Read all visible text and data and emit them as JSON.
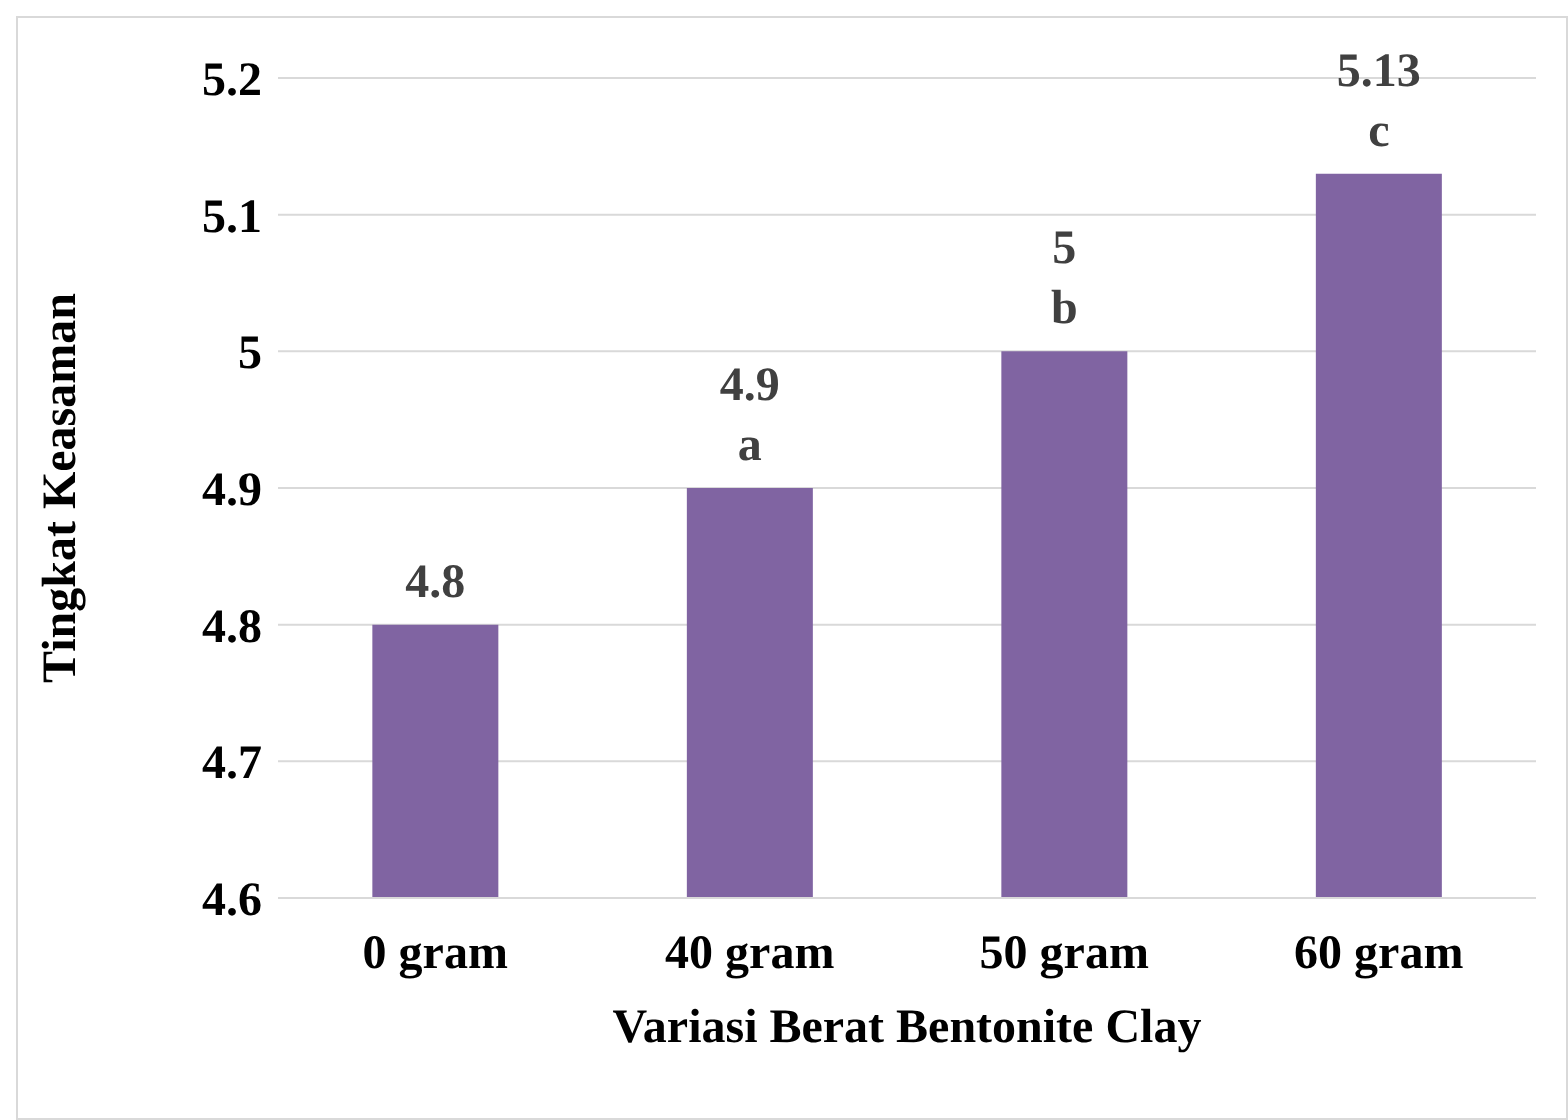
{
  "chart_data": {
    "type": "bar",
    "xlabel": "Variasi Berat Bentonite Clay",
    "ylabel": "Tingkat  Keasaman",
    "categories": [
      "0 gram",
      "40 gram",
      "50 gram",
      "60 gram"
    ],
    "values": [
      4.8,
      4.9,
      5,
      5.13
    ],
    "value_labels": [
      "4.8",
      "4.9\na",
      "5\nb",
      "5.13\nc"
    ],
    "color": "#8064a2",
    "ylim": [
      4.6,
      5.2
    ],
    "yticks": [
      4.6,
      4.7,
      4.8,
      4.9,
      5,
      5.1,
      5.2
    ],
    "grid": "y"
  }
}
